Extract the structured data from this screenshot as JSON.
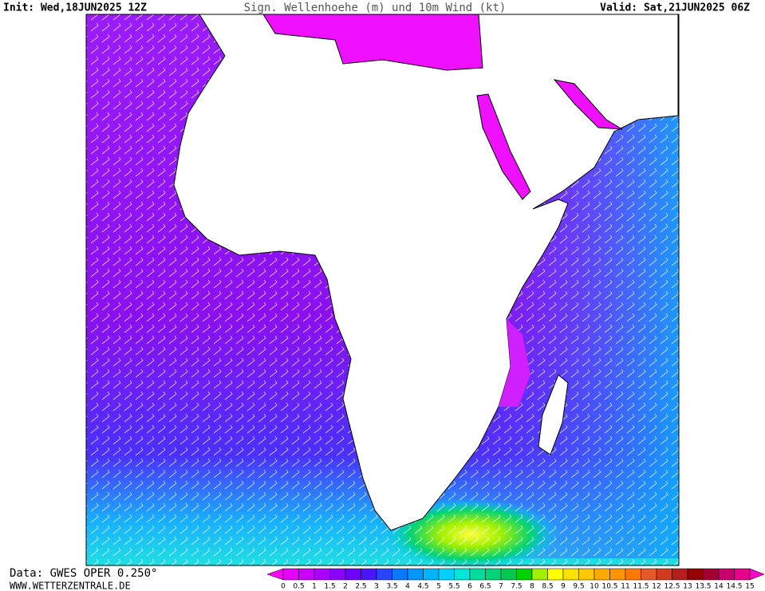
{
  "header": {
    "init": "Init: Wed,18JUN2025 12Z",
    "title": "Sign. Wellenhoehe (m) und 10m Wind (kt)",
    "valid": "Valid: Sat,21JUN2025 06Z"
  },
  "footer": {
    "source": "Data: GWES OPER 0.250°",
    "website": "WWW.WETTERZENTRALE.DE"
  },
  "legend": {
    "labels": [
      0,
      0.5,
      1,
      1.5,
      2,
      2.5,
      3,
      3.5,
      4,
      4.5,
      5,
      5.5,
      6,
      6.5,
      7,
      7.5,
      8,
      8.5,
      9,
      9.5,
      10,
      10.5,
      11,
      11.5,
      12,
      12.5,
      13,
      13.5,
      14,
      14.5,
      15
    ],
    "colors": [
      "#ff00ff",
      "#e600ff",
      "#c800ff",
      "#aa00ff",
      "#8c00ff",
      "#6e00ff",
      "#4b14ff",
      "#2846ff",
      "#0a78ff",
      "#0096ff",
      "#00b4ff",
      "#00d2ff",
      "#00e6dc",
      "#00dca0",
      "#00d278",
      "#00c850",
      "#00d200",
      "#a0f000",
      "#ffff00",
      "#ffe100",
      "#ffc800",
      "#ffaa00",
      "#ff9600",
      "#ff7800",
      "#e65a28",
      "#d23c1e",
      "#b41e1e",
      "#960000",
      "#a00032",
      "#c8006e",
      "#e6008c",
      "#ff00c8"
    ]
  }
}
